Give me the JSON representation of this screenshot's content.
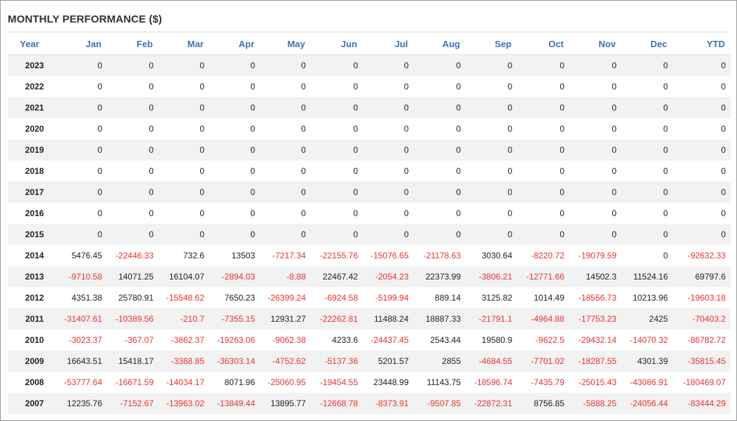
{
  "title": "MONTHLY PERFORMANCE ($)",
  "colors": {
    "header": "#3d72b4",
    "negative": "#e8322f",
    "stripe": "#f2f2f2"
  },
  "headers": [
    "Year",
    "Jan",
    "Feb",
    "Mar",
    "Apr",
    "May",
    "Jun",
    "Jul",
    "Aug",
    "Sep",
    "Oct",
    "Nov",
    "Dec",
    "YTD"
  ],
  "rows": [
    [
      "2023",
      "0",
      "0",
      "0",
      "0",
      "0",
      "0",
      "0",
      "0",
      "0",
      "0",
      "0",
      "0",
      "0"
    ],
    [
      "2022",
      "0",
      "0",
      "0",
      "0",
      "0",
      "0",
      "0",
      "0",
      "0",
      "0",
      "0",
      "0",
      "0"
    ],
    [
      "2021",
      "0",
      "0",
      "0",
      "0",
      "0",
      "0",
      "0",
      "0",
      "0",
      "0",
      "0",
      "0",
      "0"
    ],
    [
      "2020",
      "0",
      "0",
      "0",
      "0",
      "0",
      "0",
      "0",
      "0",
      "0",
      "0",
      "0",
      "0",
      "0"
    ],
    [
      "2019",
      "0",
      "0",
      "0",
      "0",
      "0",
      "0",
      "0",
      "0",
      "0",
      "0",
      "0",
      "0",
      "0"
    ],
    [
      "2018",
      "0",
      "0",
      "0",
      "0",
      "0",
      "0",
      "0",
      "0",
      "0",
      "0",
      "0",
      "0",
      "0"
    ],
    [
      "2017",
      "0",
      "0",
      "0",
      "0",
      "0",
      "0",
      "0",
      "0",
      "0",
      "0",
      "0",
      "0",
      "0"
    ],
    [
      "2016",
      "0",
      "0",
      "0",
      "0",
      "0",
      "0",
      "0",
      "0",
      "0",
      "0",
      "0",
      "0",
      "0"
    ],
    [
      "2015",
      "0",
      "0",
      "0",
      "0",
      "0",
      "0",
      "0",
      "0",
      "0",
      "0",
      "0",
      "0",
      "0"
    ],
    [
      "2014",
      "5476.45",
      "-22446.33",
      "732.6",
      "13503",
      "-7217.34",
      "-22155.76",
      "-15076.65",
      "-21178.63",
      "3030.64",
      "-8220.72",
      "-19079.59",
      "0",
      "-92632.33"
    ],
    [
      "2013",
      "-9710.58",
      "14071.25",
      "16104.07",
      "-2894.03",
      "-8.88",
      "22467.42",
      "-2054.23",
      "22373.99",
      "-3806.21",
      "-12771.66",
      "14502.3",
      "11524.16",
      "69797.6"
    ],
    [
      "2012",
      "4351.38",
      "25780.91",
      "-15548.62",
      "7650.23",
      "-26399.24",
      "-6924.58",
      "-5199.94",
      "889.14",
      "3125.82",
      "1014.49",
      "-18556.73",
      "10213.96",
      "-19603.18"
    ],
    [
      "2011",
      "-31407.61",
      "-10389.56",
      "-210.7",
      "-7355.15",
      "12931.27",
      "-22262.81",
      "11488.24",
      "18887.33",
      "-21791.1",
      "-4964.88",
      "-17753.23",
      "2425",
      "-70403.2"
    ],
    [
      "2010",
      "-3023.37",
      "-367.07",
      "-3862.37",
      "-19263.06",
      "-9062.38",
      "4233.6",
      "-24437.45",
      "2543.44",
      "19580.9",
      "-9622.5",
      "-29432.14",
      "-14070.32",
      "-86782.72"
    ],
    [
      "2009",
      "16643.51",
      "15418.17",
      "-3368.85",
      "-36303.14",
      "-4752.62",
      "-5137.36",
      "5201.57",
      "2855",
      "-4684.55",
      "-7701.02",
      "-18287.55",
      "4301.39",
      "-35815.45"
    ],
    [
      "2008",
      "-53777.64",
      "-16671.59",
      "-14034.17",
      "8071.96",
      "-25060.95",
      "-19454.55",
      "23448.99",
      "11143.75",
      "-18596.74",
      "-7435.79",
      "-25015.43",
      "-43086.91",
      "-180469.07"
    ],
    [
      "2007",
      "12235.76",
      "-7152.67",
      "-13963.02",
      "-13849.44",
      "13895.77",
      "-12668.78",
      "-8373.91",
      "-9507.85",
      "-22872.31",
      "8756.85",
      "-5888.25",
      "-24056.44",
      "-83444.29"
    ]
  ]
}
